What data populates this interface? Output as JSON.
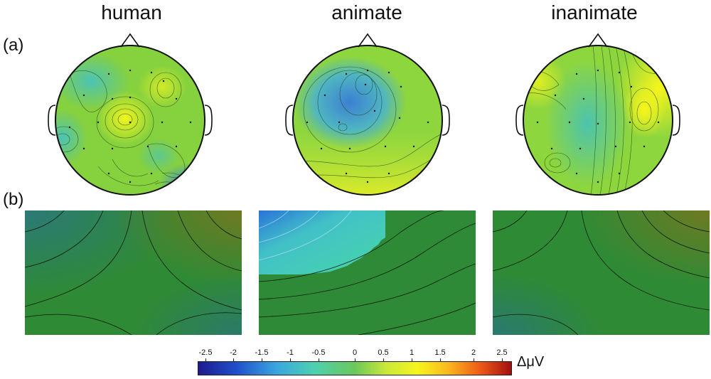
{
  "titles": [
    "human",
    "animate",
    "inanimate"
  ],
  "panel_labels": [
    "(a)",
    "(b)"
  ],
  "colorbar": {
    "ticks": [
      "-2.5",
      "-2",
      "-1.5",
      "-1",
      "-0.5",
      "0",
      "0.5",
      "1",
      "1.5",
      "2",
      "2.5"
    ],
    "unit": "ΔμV",
    "range": [
      -2.8,
      2.8
    ]
  },
  "colors": {
    "low": "#1f1a8f",
    "mid": "#6ac85a",
    "high": "#a30f0f",
    "dark_green": "#2e8a36",
    "teal": "#46d0a8"
  }
}
